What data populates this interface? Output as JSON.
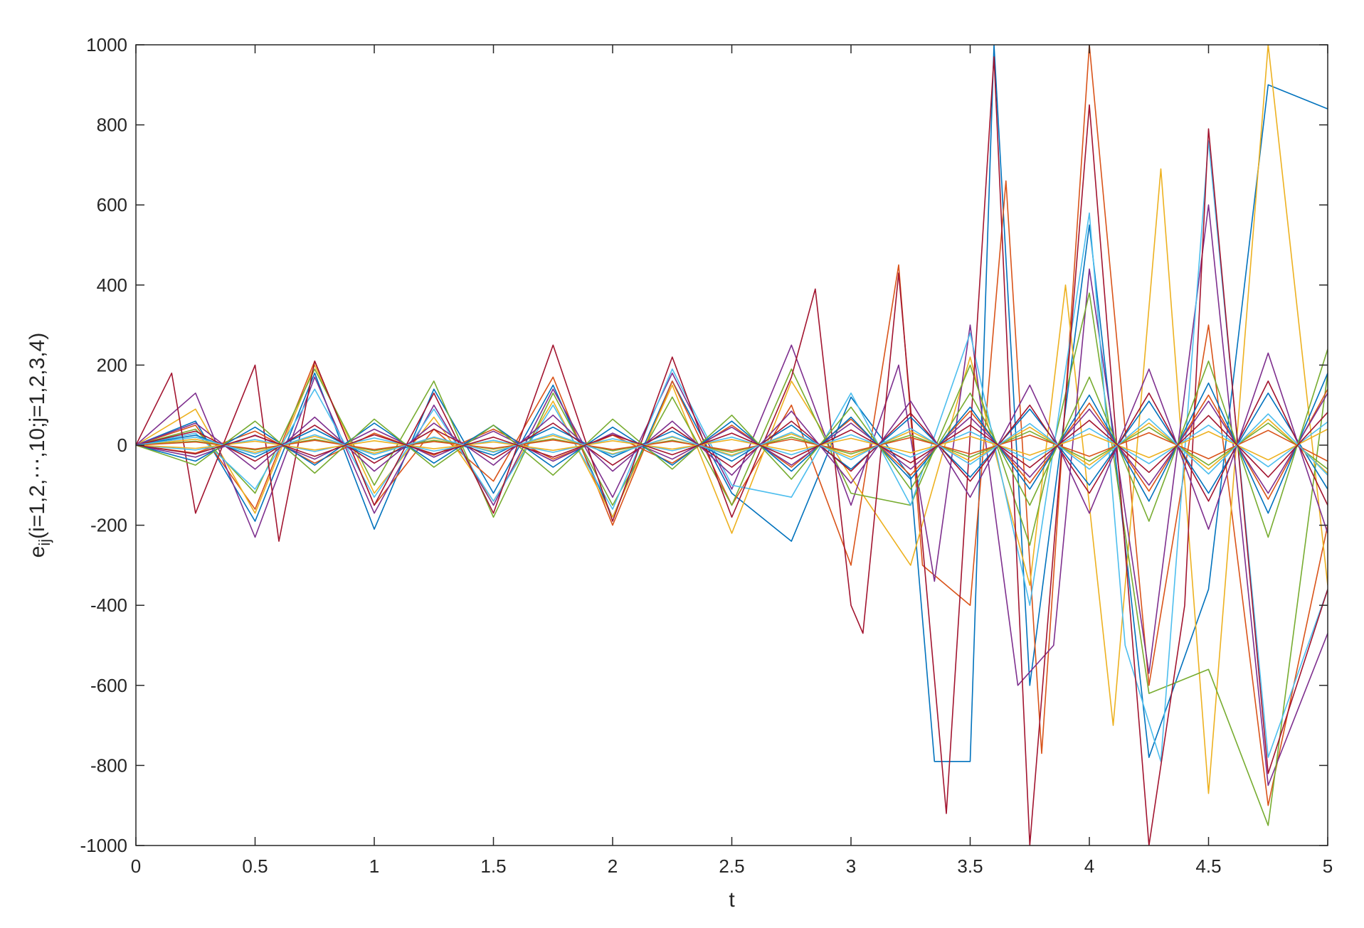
{
  "chart_data": {
    "type": "line",
    "title": "",
    "xlabel": "t",
    "ylabel": {
      "base": "e",
      "subscript": "ij",
      "rest": "(i=1,2,⋯,10;j=1,2,3,4)"
    },
    "xlim": [
      0,
      5
    ],
    "ylim": [
      -1000,
      1000
    ],
    "xticks": [
      0,
      0.5,
      1,
      1.5,
      2,
      2.5,
      3,
      3.5,
      4,
      4.5,
      5
    ],
    "xtick_labels": [
      "0",
      "0.5",
      "1",
      "1.5",
      "2",
      "2.5",
      "3",
      "3.5",
      "4",
      "4.5",
      "5"
    ],
    "yticks": [
      -1000,
      -800,
      -600,
      -400,
      -200,
      0,
      200,
      400,
      600,
      800,
      1000
    ],
    "ytick_labels": [
      "-1000",
      "-800",
      "-600",
      "-400",
      "-200",
      "0",
      "200",
      "400",
      "600",
      "800",
      "1000"
    ],
    "grid": false,
    "legend": "none",
    "colors": [
      "#0072BD",
      "#D95319",
      "#EDB120",
      "#7E2F8E",
      "#77AC30",
      "#4DBEEE",
      "#A2142F"
    ],
    "series": [
      {
        "x": [
          0,
          0.25,
          0.5,
          0.75,
          1,
          1.25,
          1.5,
          1.75,
          2,
          2.25,
          2.5,
          2.75,
          3,
          3.25,
          3.35,
          3.5,
          3.6,
          3.75,
          4,
          4.25,
          4.5,
          4.75,
          5
        ],
        "values": [
          0,
          60,
          -190,
          180,
          -210,
          140,
          -120,
          150,
          -180,
          160,
          -120,
          -240,
          120,
          -80,
          -790,
          -790,
          1000,
          -600,
          550,
          -780,
          -360,
          900,
          840
        ]
      },
      {
        "x": [
          0,
          0.25,
          0.5,
          0.75,
          1,
          1.25,
          1.5,
          1.75,
          2,
          2.25,
          2.5,
          2.75,
          3,
          3.2,
          3.3,
          3.5,
          3.65,
          3.8,
          4,
          4.25,
          4.5,
          4.75,
          5
        ],
        "values": [
          0,
          50,
          -160,
          210,
          -150,
          40,
          -90,
          170,
          -200,
          160,
          -150,
          100,
          -300,
          450,
          -300,
          -400,
          660,
          -770,
          1000,
          -600,
          300,
          -900,
          -200
        ]
      },
      {
        "x": [
          0,
          0.25,
          0.5,
          0.75,
          1,
          1.25,
          1.5,
          1.75,
          2,
          2.25,
          2.5,
          2.75,
          3,
          3.25,
          3.5,
          3.75,
          3.9,
          4.1,
          4.3,
          4.5,
          4.75,
          5
        ],
        "values": [
          0,
          90,
          -170,
          200,
          -120,
          70,
          -140,
          110,
          -180,
          150,
          -220,
          160,
          -80,
          -300,
          220,
          -350,
          400,
          -700,
          690,
          -870,
          1000,
          -350
        ]
      },
      {
        "x": [
          0,
          0.25,
          0.5,
          0.75,
          1,
          1.25,
          1.5,
          1.75,
          2,
          2.25,
          2.5,
          2.75,
          3,
          3.2,
          3.35,
          3.5,
          3.7,
          3.85,
          4,
          4.25,
          4.5,
          4.75,
          5
        ],
        "values": [
          0,
          130,
          -230,
          170,
          -170,
          100,
          -150,
          140,
          -130,
          180,
          -110,
          250,
          -150,
          200,
          -340,
          300,
          -600,
          -500,
          440,
          -570,
          600,
          -850,
          -470
        ]
      },
      {
        "x": [
          0,
          0.25,
          0.5,
          0.75,
          1,
          1.25,
          1.5,
          1.75,
          2,
          2.25,
          2.5,
          2.75,
          3,
          3.25,
          3.5,
          3.75,
          4,
          4.25,
          4.5,
          4.75,
          5
        ],
        "values": [
          0,
          40,
          -120,
          190,
          -100,
          160,
          -180,
          130,
          -150,
          120,
          -150,
          190,
          -120,
          -150,
          200,
          -250,
          380,
          -620,
          -560,
          -950,
          180
        ]
      },
      {
        "x": [
          0,
          0.25,
          0.5,
          0.75,
          1,
          1.25,
          1.5,
          1.75,
          2,
          2.25,
          2.5,
          2.75,
          3,
          3.25,
          3.5,
          3.75,
          4,
          4.15,
          4.3,
          4.5,
          4.75,
          5
        ],
        "values": [
          0,
          30,
          -110,
          140,
          -130,
          90,
          -140,
          100,
          -160,
          190,
          -100,
          -130,
          130,
          -150,
          280,
          -400,
          580,
          -500,
          -790,
          760,
          -780,
          -360
        ]
      },
      {
        "x": [
          0,
          0.15,
          0.25,
          0.5,
          0.6,
          0.75,
          1,
          1.25,
          1.5,
          1.75,
          2,
          2.25,
          2.5,
          2.75,
          2.85,
          3,
          3.05,
          3.2,
          3.4,
          3.6,
          3.75,
          4,
          4.25,
          4.4,
          4.5,
          4.75,
          5
        ],
        "values": [
          0,
          180,
          -170,
          200,
          -240,
          210,
          -150,
          130,
          -170,
          250,
          -190,
          220,
          -180,
          170,
          390,
          -400,
          -470,
          430,
          -920,
          970,
          -1000,
          850,
          -1000,
          -400,
          790,
          -820,
          -360
        ]
      },
      {
        "x": [
          0,
          0.25,
          0.5,
          0.75,
          1,
          1.25,
          1.5,
          1.75,
          2,
          2.25,
          2.5,
          2.75,
          3,
          3.25,
          3.5,
          3.75,
          4,
          4.25,
          4.5,
          4.75,
          5
        ],
        "values": [
          0,
          25,
          -30,
          40,
          -35,
          20,
          -25,
          45,
          -30,
          35,
          -40,
          50,
          -60,
          70,
          -80,
          90,
          -100,
          110,
          -120,
          130,
          -110
        ]
      },
      {
        "x": [
          0,
          0.25,
          0.5,
          0.75,
          1,
          1.25,
          1.5,
          1.75,
          2,
          2.25,
          2.5,
          2.75,
          3,
          3.25,
          3.5,
          3.75,
          4,
          4.25,
          4.5,
          4.75,
          5
        ],
        "values": [
          0,
          -20,
          35,
          -45,
          30,
          -25,
          40,
          -35,
          25,
          -45,
          50,
          -55,
          65,
          -75,
          85,
          -95,
          105,
          -115,
          125,
          -135,
          140
        ]
      },
      {
        "x": [
          0,
          0.25,
          0.5,
          0.75,
          1,
          1.25,
          1.5,
          1.75,
          2,
          2.25,
          2.5,
          2.75,
          3,
          3.25,
          3.5,
          3.75,
          4,
          4.25,
          4.5,
          4.75,
          5
        ],
        "values": [
          0,
          15,
          -18,
          22,
          -20,
          18,
          -16,
          24,
          -22,
          20,
          -25,
          28,
          -30,
          35,
          -40,
          45,
          -50,
          55,
          -60,
          65,
          -70
        ]
      },
      {
        "x": [
          0,
          0.25,
          0.5,
          0.75,
          1,
          1.25,
          1.5,
          1.75,
          2,
          2.25,
          2.5,
          2.75,
          3,
          3.25,
          3.5,
          3.75,
          4,
          4.25,
          4.5,
          4.75,
          5
        ],
        "values": [
          0,
          -30,
          25,
          -35,
          40,
          -30,
          35,
          -40,
          30,
          -35,
          45,
          -50,
          55,
          -60,
          70,
          -80,
          90,
          -100,
          110,
          -120,
          130
        ]
      },
      {
        "x": [
          0,
          0.25,
          0.5,
          0.75,
          1,
          1.25,
          1.5,
          1.75,
          2,
          2.25,
          2.5,
          2.75,
          3,
          3.25,
          3.5,
          3.75,
          4,
          4.25,
          4.5,
          4.75,
          5
        ],
        "values": [
          0,
          10,
          -12,
          15,
          -14,
          12,
          -10,
          16,
          -14,
          12,
          -18,
          20,
          -22,
          25,
          -30,
          35,
          -40,
          45,
          -50,
          55,
          -60
        ]
      },
      {
        "x": [
          0,
          0.25,
          0.5,
          0.75,
          1,
          1.25,
          1.5,
          1.75,
          2,
          2.25,
          2.5,
          2.75,
          3,
          3.25,
          3.5,
          3.75,
          4,
          4.25,
          4.5,
          4.75,
          5
        ],
        "values": [
          0,
          -12,
          14,
          -16,
          18,
          -15,
          12,
          -18,
          16,
          -14,
          20,
          -24,
          26,
          -30,
          34,
          -38,
          42,
          -46,
          50,
          -54,
          58
        ]
      },
      {
        "x": [
          0,
          0.25,
          0.5,
          0.75,
          1,
          1.25,
          1.5,
          1.75,
          2,
          2.25,
          2.5,
          2.75,
          3,
          3.25,
          3.5,
          3.75,
          4,
          4.25,
          4.5,
          4.75,
          5
        ],
        "values": [
          0,
          35,
          -40,
          50,
          -45,
          40,
          -35,
          55,
          -50,
          45,
          -55,
          60,
          -65,
          80,
          -90,
          100,
          -120,
          130,
          -140,
          160,
          -150
        ]
      },
      {
        "x": [
          0,
          0.25,
          0.5,
          0.75,
          1,
          1.25,
          1.5,
          1.75,
          2,
          2.25,
          2.5,
          2.75,
          3,
          3.25,
          3.5,
          3.75,
          4,
          4.25,
          4.5,
          4.75,
          5
        ],
        "values": [
          0,
          -40,
          45,
          -50,
          55,
          -45,
          50,
          -55,
          45,
          -50,
          60,
          -65,
          70,
          -85,
          95,
          -110,
          125,
          -140,
          155,
          -170,
          180
        ]
      },
      {
        "x": [
          0,
          0.25,
          0.5,
          0.75,
          1,
          1.25,
          1.5,
          1.75,
          2,
          2.25,
          2.5,
          2.75,
          3,
          3.25,
          3.5,
          3.75,
          4,
          4.25,
          4.5,
          4.75,
          5
        ],
        "values": [
          0,
          8,
          -10,
          12,
          -11,
          9,
          -8,
          13,
          -11,
          10,
          -14,
          15,
          -17,
          19,
          -22,
          25,
          -28,
          31,
          -34,
          37,
          -40
        ]
      },
      {
        "x": [
          0,
          0.25,
          0.5,
          0.75,
          1,
          1.25,
          1.5,
          1.75,
          2,
          2.25,
          2.5,
          2.75,
          3,
          3.25,
          3.5,
          3.75,
          4,
          4.25,
          4.5,
          4.75,
          5
        ],
        "values": [
          0,
          -8,
          10,
          -12,
          11,
          -9,
          8,
          -13,
          11,
          -10,
          14,
          -15,
          17,
          -19,
          22,
          -25,
          28,
          -31,
          34,
          -37,
          40
        ]
      },
      {
        "x": [
          0,
          0.25,
          0.5,
          0.75,
          1,
          1.25,
          1.5,
          1.75,
          2,
          2.25,
          2.5,
          2.75,
          3,
          3.25,
          3.5,
          3.75,
          4,
          4.25,
          4.5,
          4.75,
          5
        ],
        "values": [
          0,
          55,
          -60,
          70,
          -65,
          55,
          -50,
          75,
          -65,
          60,
          -75,
          85,
          -95,
          110,
          -130,
          150,
          -170,
          190,
          -210,
          230,
          -220
        ]
      },
      {
        "x": [
          0,
          0.25,
          0.5,
          0.75,
          1,
          1.25,
          1.5,
          1.75,
          2,
          2.25,
          2.5,
          2.75,
          3,
          3.25,
          3.5,
          3.75,
          4,
          4.25,
          4.5,
          4.75,
          5
        ],
        "values": [
          0,
          -50,
          60,
          -70,
          65,
          -55,
          50,
          -75,
          65,
          -60,
          75,
          -85,
          95,
          -110,
          130,
          -150,
          170,
          -190,
          210,
          -230,
          240
        ]
      },
      {
        "x": [
          0,
          0.25,
          0.5,
          0.75,
          1,
          1.25,
          1.5,
          1.75,
          2,
          2.25,
          2.5,
          2.75,
          3,
          3.25,
          3.5,
          3.75,
          4,
          4.25,
          4.5,
          4.75,
          5
        ],
        "values": [
          0,
          20,
          -22,
          26,
          -24,
          20,
          -18,
          28,
          -24,
          22,
          -28,
          32,
          -36,
          42,
          -48,
          54,
          -60,
          66,
          -72,
          78,
          -75
        ]
      },
      {
        "x": [
          0,
          0.25,
          0.5,
          0.75,
          1,
          1.25,
          1.5,
          1.75,
          2,
          2.25,
          2.5,
          2.75,
          3,
          3.25,
          3.5,
          3.75,
          4,
          4.25,
          4.5,
          4.75,
          5
        ],
        "values": [
          0,
          -22,
          24,
          -28,
          26,
          -22,
          20,
          -30,
          26,
          -24,
          30,
          -34,
          38,
          -44,
          50,
          -56,
          62,
          -68,
          74,
          -80,
          82
        ]
      }
    ]
  }
}
